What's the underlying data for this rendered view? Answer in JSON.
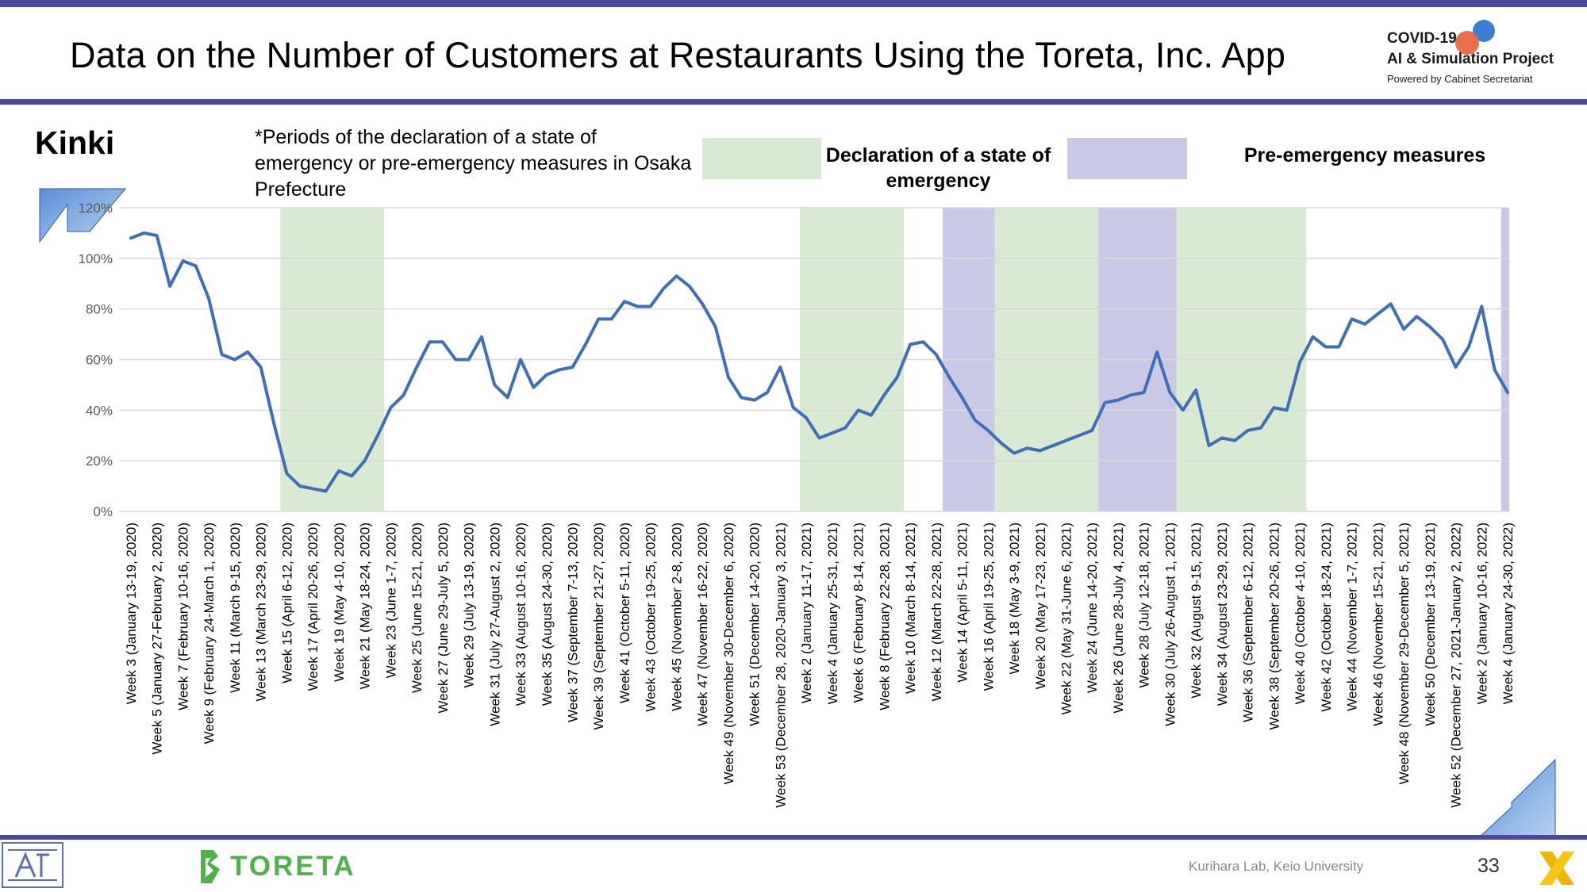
{
  "header": {
    "title": "Data on the Number of Customers at Restaurants Using the Toreta, Inc. App",
    "project": {
      "line1": "COVID-19",
      "line2": "AI & Simulation Project",
      "line3": "Powered by Cabinet Secretariat"
    }
  },
  "region": "Kinki",
  "note": "*Periods of the declaration of a state of emergency or pre-emergency measures in Osaka Prefecture",
  "legend": {
    "state_of_emergency": "Declaration of a state of emergency",
    "pre_emergency": "Pre-emergency measures"
  },
  "colors": {
    "line": "#3f6fb8",
    "state_of_emergency": "#d9ead3",
    "pre_emergency": "#c9c9e6",
    "accent": "#4a4a9c"
  },
  "footer": {
    "credit": "Kurihara Lab, Keio University",
    "page": "33",
    "toreta": "TORETA"
  },
  "chart_data": {
    "type": "line",
    "ylim": [
      0,
      120
    ],
    "yticks": [
      "0%",
      "20%",
      "40%",
      "60%",
      "80%",
      "100%",
      "120%"
    ],
    "grid": true,
    "xtick_labels": [
      "Week 3 (January 13-19, 2020)",
      "Week 5 (January 27-February 2, 2020)",
      "Week 7 (February 10-16, 2020)",
      "Week 9 (February 24-March 1, 2020)",
      "Week 11 (March 9-15, 2020)",
      "Week 13 (March 23-29, 2020)",
      "Week 15 (April 6-12, 2020)",
      "Week 17 (April 20-26, 2020)",
      "Week 19 (May 4-10, 2020)",
      "Week 21 (May 18-24, 2020)",
      "Week 23 (June 1-7, 2020)",
      "Week 25 (June 15-21, 2020)",
      "Week 27 (June 29-July 5, 2020)",
      "Week 29 (July 13-19, 2020)",
      "Week 31 (July 27-August 2, 2020)",
      "Week 33 (August 10-16, 2020)",
      "Week 35 (August 24-30, 2020)",
      "Week 37 (September 7-13, 2020)",
      "Week 39 (September 21-27, 2020)",
      "Week 41 (October 5-11, 2020)",
      "Week 43 (October 19-25, 2020)",
      "Week 45 (November 2-8, 2020)",
      "Week 47 (November 16-22, 2020)",
      "Week 49 (November 30-December 6, 2020)",
      "Week 51 (December 14-20, 2020)",
      "Week 53 (December 28, 2020-January 3, 2021)",
      "Week 2 (January 11-17, 2021)",
      "Week 4 (January 25-31, 2021)",
      "Week 6 (February 8-14, 2021)",
      "Week 8 (February 22-28, 2021)",
      "Week 10 (March 8-14, 2021)",
      "Week 12 (March 22-28, 2021)",
      "Week 14 (April 5-11, 2021)",
      "Week 16 (April 19-25, 2021)",
      "Week 18 (May 3-9, 2021)",
      "Week 20 (May 17-23, 2021)",
      "Week 22 (May 31-June 6, 2021)",
      "Week 24 (June 14-20, 2021)",
      "Week 26 (June 28-July 4, 2021)",
      "Week 28 (July 12-18, 2021)",
      "Week 30 (July 26-August 1, 2021)",
      "Week 32 (August 9-15, 2021)",
      "Week 34 (August 23-29, 2021)",
      "Week 36 (September 6-12, 2021)",
      "Week 38 (September 20-26, 2021)",
      "Week 40 (October 4-10, 2021)",
      "Week 42 (October 18-24, 2021)",
      "Week 44 (November 1-7, 2021)",
      "Week 46 (November 15-21, 2021)",
      "Week 48 (November 29-December 5, 2021)",
      "Week 50 (December 13-19, 2021)",
      "Week 52 (December 27, 2021-January 2, 2022)",
      "Week 2 (January 10-16, 2022)",
      "Week 4 (January 24-30, 2022)"
    ],
    "values": [
      108,
      110,
      109,
      89,
      99,
      97,
      84,
      62,
      60,
      63,
      57,
      35,
      15,
      10,
      9,
      8,
      16,
      14,
      20,
      30,
      41,
      46,
      57,
      67,
      67,
      60,
      60,
      69,
      50,
      45,
      60,
      49,
      54,
      56,
      57,
      66,
      76,
      76,
      83,
      81,
      81,
      88,
      93,
      89,
      82,
      73,
      53,
      45,
      44,
      47,
      57,
      41,
      37,
      29,
      31,
      33,
      40,
      38,
      46,
      53,
      66,
      67,
      62,
      53,
      45,
      36,
      32,
      27,
      23,
      25,
      24,
      26,
      28,
      30,
      32,
      43,
      44,
      46,
      47,
      63,
      47,
      40,
      48,
      26,
      29,
      28,
      32,
      33,
      41,
      40,
      59,
      69,
      65,
      65,
      76,
      74,
      78,
      82,
      72,
      77,
      73,
      68,
      57,
      65,
      81,
      56,
      47
    ],
    "shaded_periods": [
      {
        "type": "state_of_emergency",
        "start_index": 12,
        "end_index": 19
      },
      {
        "type": "state_of_emergency",
        "start_index": 52,
        "end_index": 59
      },
      {
        "type": "pre_emergency",
        "start_index": 63,
        "end_index": 67
      },
      {
        "type": "state_of_emergency",
        "start_index": 67,
        "end_index": 75
      },
      {
        "type": "pre_emergency",
        "start_index": 75,
        "end_index": 81
      },
      {
        "type": "state_of_emergency",
        "start_index": 81,
        "end_index": 90
      },
      {
        "type": "pre_emergency",
        "start_index": 106,
        "end_index": 107
      }
    ]
  }
}
